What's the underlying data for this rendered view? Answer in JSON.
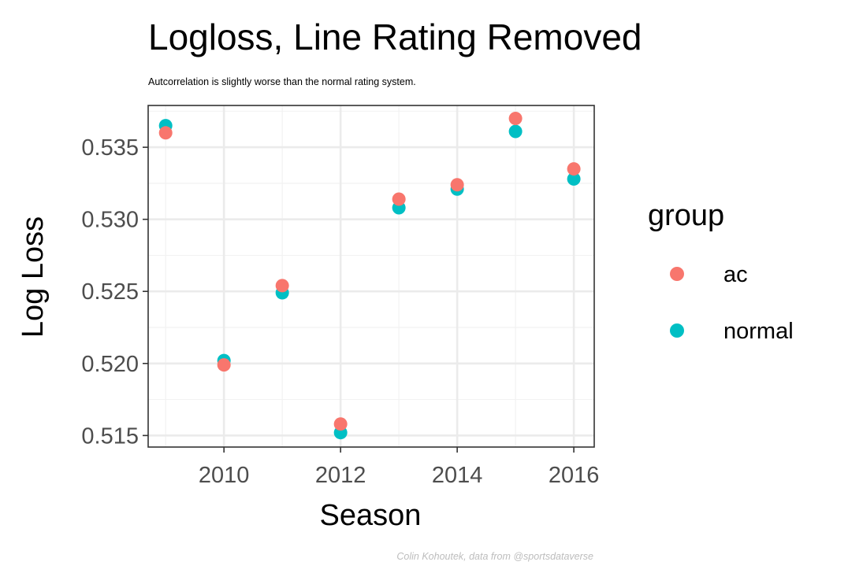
{
  "chart_data": {
    "type": "scatter",
    "title": "Logloss, Line Rating Removed",
    "subtitle": "Autcorrelation is slightly worse than the normal rating system.",
    "caption": "Colin Kohoutek, data from @sportsdataverse",
    "xlabel": "Season",
    "ylabel": "Log Loss",
    "xlim": [
      2008.7,
      2016.35
    ],
    "ylim": [
      0.5142,
      0.5379
    ],
    "x_ticks": [
      2010,
      2012,
      2014,
      2016
    ],
    "x_tick_labels": [
      "2010",
      "2012",
      "2014",
      "2016"
    ],
    "y_ticks": [
      0.515,
      0.52,
      0.525,
      0.53,
      0.535
    ],
    "y_tick_labels": [
      "0.515",
      "0.520",
      "0.525",
      "0.530",
      "0.535"
    ],
    "grid": true,
    "legend": {
      "title": "group",
      "position": "right"
    },
    "series": [
      {
        "name": "normal",
        "color": "#00BFC4",
        "points": [
          {
            "x": 2009,
            "y": 0.5365
          },
          {
            "x": 2010,
            "y": 0.5202
          },
          {
            "x": 2011,
            "y": 0.5249
          },
          {
            "x": 2012,
            "y": 0.5152
          },
          {
            "x": 2013,
            "y": 0.5308
          },
          {
            "x": 2014,
            "y": 0.5321
          },
          {
            "x": 2015,
            "y": 0.5361
          },
          {
            "x": 2016,
            "y": 0.5328
          }
        ]
      },
      {
        "name": "ac",
        "color": "#F8766D",
        "points": [
          {
            "x": 2009,
            "y": 0.536
          },
          {
            "x": 2010,
            "y": 0.5199
          },
          {
            "x": 2011,
            "y": 0.5254
          },
          {
            "x": 2012,
            "y": 0.5158
          },
          {
            "x": 2013,
            "y": 0.5314
          },
          {
            "x": 2014,
            "y": 0.5324
          },
          {
            "x": 2015,
            "y": 0.537
          },
          {
            "x": 2016,
            "y": 0.5335
          }
        ]
      }
    ],
    "legend_order": [
      "ac",
      "normal"
    ]
  }
}
